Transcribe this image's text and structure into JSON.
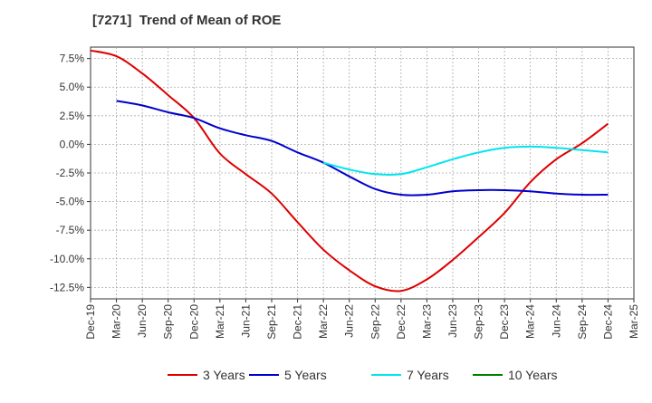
{
  "chart_data": {
    "type": "line",
    "title": "[7271]  Trend of Mean of ROE",
    "xlabel": "",
    "ylabel": "",
    "x_ticks": [
      "Dec-19",
      "Mar-20",
      "Jun-20",
      "Sep-20",
      "Dec-20",
      "Mar-21",
      "Jun-21",
      "Sep-21",
      "Dec-21",
      "Mar-22",
      "Jun-22",
      "Sep-22",
      "Dec-22",
      "Mar-23",
      "Jun-23",
      "Sep-23",
      "Dec-23",
      "Mar-24",
      "Jun-24",
      "Sep-24",
      "Dec-24",
      "Mar-25"
    ],
    "y_ticks": [
      7.5,
      5.0,
      2.5,
      0.0,
      -2.5,
      -5.0,
      -7.5,
      -10.0,
      -12.5
    ],
    "y_tick_labels": [
      "7.5%",
      "5.0%",
      "2.5%",
      "0.0%",
      "-2.5%",
      "-5.0%",
      "-7.5%",
      "-10.0%",
      "-12.5%"
    ],
    "ylim": [
      -13.5,
      8.5
    ],
    "grid": true,
    "legend_position": "bottom",
    "series": [
      {
        "name": "3 Years",
        "color": "#dd0000",
        "x": [
          "Dec-19",
          "Mar-20",
          "Jun-20",
          "Sep-20",
          "Dec-20",
          "Mar-21",
          "Jun-21",
          "Sep-21",
          "Dec-21",
          "Mar-22",
          "Jun-22",
          "Sep-22",
          "Dec-22",
          "Mar-23",
          "Jun-23",
          "Sep-23",
          "Dec-23",
          "Mar-24",
          "Jun-24",
          "Sep-24",
          "Dec-24"
        ],
        "values": [
          8.2,
          7.7,
          6.2,
          4.3,
          2.3,
          -0.8,
          -2.6,
          -4.3,
          -6.8,
          -9.2,
          -11.0,
          -12.4,
          -12.8,
          -11.8,
          -10.1,
          -8.1,
          -6.0,
          -3.3,
          -1.3,
          0.1,
          1.8
        ]
      },
      {
        "name": "5 Years",
        "color": "#0000cc",
        "x": [
          "Mar-20",
          "Jun-20",
          "Sep-20",
          "Dec-20",
          "Mar-21",
          "Jun-21",
          "Sep-21",
          "Dec-21",
          "Mar-22",
          "Jun-22",
          "Sep-22",
          "Dec-22",
          "Mar-23",
          "Jun-23",
          "Sep-23",
          "Dec-23",
          "Mar-24",
          "Jun-24",
          "Sep-24",
          "Dec-24"
        ],
        "values": [
          3.8,
          3.4,
          2.8,
          2.3,
          1.4,
          0.8,
          0.3,
          -0.7,
          -1.6,
          -2.8,
          -3.9,
          -4.4,
          -4.4,
          -4.1,
          -4.0,
          -4.0,
          -4.1,
          -4.3,
          -4.4,
          -4.4
        ]
      },
      {
        "name": "7 Years",
        "color": "#00e5ee",
        "x": [
          "Mar-22",
          "Jun-22",
          "Sep-22",
          "Dec-22",
          "Mar-23",
          "Jun-23",
          "Sep-23",
          "Dec-23",
          "Mar-24",
          "Jun-24",
          "Sep-24",
          "Dec-24"
        ],
        "values": [
          -1.6,
          -2.2,
          -2.6,
          -2.6,
          -2.0,
          -1.3,
          -0.7,
          -0.3,
          -0.2,
          -0.3,
          -0.5,
          -0.7
        ]
      },
      {
        "name": "10 Years",
        "color": "#008000",
        "x": [],
        "values": []
      }
    ]
  }
}
